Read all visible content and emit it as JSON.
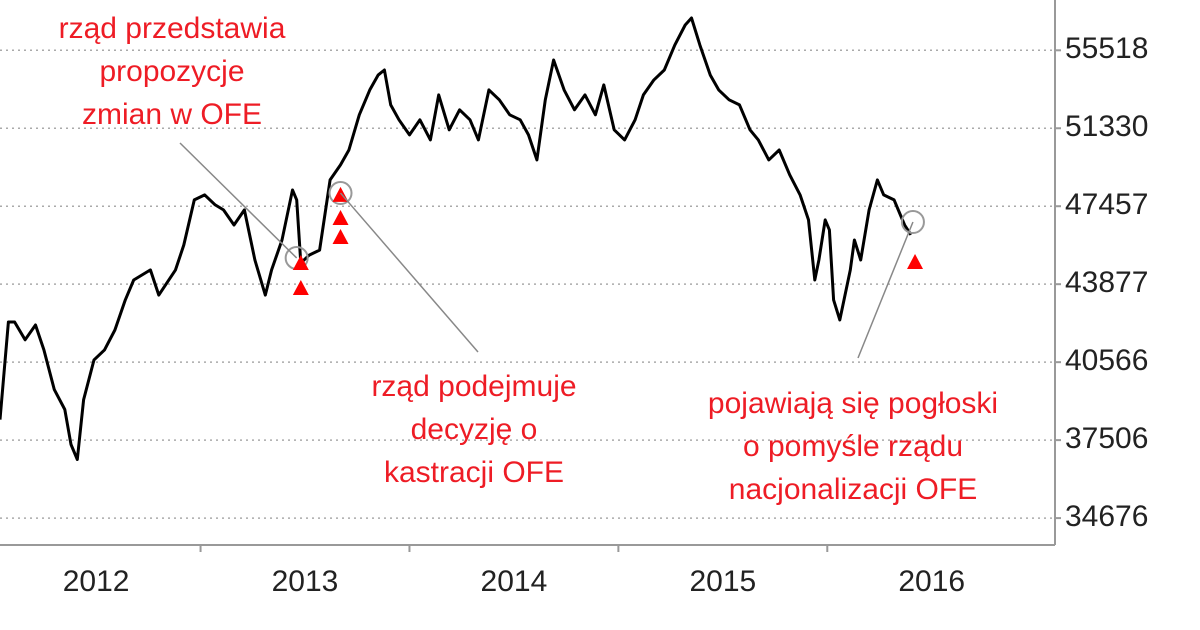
{
  "chart_data": {
    "type": "line",
    "x": [
      2012.04,
      2012.08,
      2012.11,
      2012.16,
      2012.21,
      2012.25,
      2012.3,
      2012.35,
      2012.38,
      2012.41,
      2012.44,
      2012.49,
      2012.54,
      2012.59,
      2012.64,
      2012.68,
      2012.76,
      2012.8,
      2012.88,
      2012.92,
      2012.97,
      2013.02,
      2013.07,
      2013.11,
      2013.16,
      2013.21,
      2013.26,
      2013.31,
      2013.34,
      2013.39,
      2013.44,
      2013.46,
      2013.48,
      2013.52,
      2013.57,
      2013.62,
      2013.67,
      2013.71,
      2013.76,
      2013.81,
      2013.85,
      2013.88,
      2013.91,
      2013.95,
      2014.0,
      2014.05,
      2014.1,
      2014.14,
      2014.19,
      2014.24,
      2014.29,
      2014.33,
      2014.38,
      2014.43,
      2014.48,
      2014.53,
      2014.57,
      2014.61,
      2014.65,
      2014.69,
      2014.74,
      2014.79,
      2014.84,
      2014.89,
      2014.93,
      2014.98,
      2015.03,
      2015.08,
      2015.12,
      2015.17,
      2015.22,
      2015.27,
      2015.32,
      2015.35,
      2015.39,
      2015.44,
      2015.48,
      2015.53,
      2015.58,
      2015.63,
      2015.67,
      2015.72,
      2015.77,
      2015.82,
      2015.87,
      2015.91,
      2015.94,
      2015.96,
      2015.99,
      2016.01,
      2016.03,
      2016.06,
      2016.08,
      2016.11,
      2016.13,
      2016.16,
      2016.2,
      2016.24,
      2016.27,
      2016.32,
      2016.37,
      2016.4
    ],
    "values": [
      38290,
      42240,
      42240,
      41490,
      42110,
      41070,
      39460,
      38680,
      37340,
      36780,
      39060,
      40660,
      41070,
      41900,
      43190,
      44060,
      44510,
      43400,
      44510,
      45640,
      47760,
      48000,
      47520,
      47280,
      46570,
      47280,
      44960,
      43400,
      44510,
      45870,
      48240,
      47760,
      44820,
      45180,
      45410,
      48730,
      49470,
      50220,
      52030,
      53350,
      54150,
      54430,
      52550,
      51770,
      50990,
      51770,
      50730,
      53080,
      51250,
      52290,
      51770,
      50730,
      53350,
      52820,
      52030,
      51770,
      50990,
      49720,
      52820,
      54980,
      53350,
      52290,
      53080,
      52030,
      53620,
      51250,
      50730,
      51770,
      53080,
      53890,
      54430,
      55810,
      56950,
      57350,
      55810,
      54150,
      53350,
      52820,
      52550,
      51250,
      50730,
      49720,
      50220,
      48980,
      48000,
      46810,
      44060,
      44960,
      46810,
      46340,
      43190,
      42330,
      43190,
      44510,
      45870,
      44960,
      47280,
      48730,
      48000,
      47760,
      46570,
      46110
    ],
    "color": "#000000",
    "ylim": [
      33750,
      58400
    ],
    "log_scale": true,
    "grid": true,
    "yticks": [
      34676,
      37506,
      40566,
      43877,
      47457,
      51330,
      55518
    ],
    "xlim": [
      2012.04,
      2017.09
    ],
    "xticks": [
      {
        "value": 2012.5,
        "label": "2012"
      },
      {
        "value": 2013.5,
        "label": "2013"
      },
      {
        "value": 2014.5,
        "label": "2014"
      },
      {
        "value": 2015.5,
        "label": "2015"
      },
      {
        "value": 2016.5,
        "label": "2016"
      }
    ],
    "signals": {
      "color": "#ff0000",
      "x": [
        2013.48,
        2013.48,
        2013.67,
        2013.67,
        2013.67,
        2016.42
      ],
      "values": [
        44820,
        43710,
        48000,
        46900,
        46010,
        44870
      ]
    },
    "highlights": {
      "color": "#999999",
      "x": [
        2013.46,
        2013.67,
        2016.41
      ],
      "values": [
        45050,
        48090,
        46710
      ]
    },
    "annotations": [
      {
        "lines": [
          "rząd przedstawia",
          "propozycje",
          "zmian w OFE"
        ]
      },
      {
        "lines": [
          "rząd podejmuje",
          "decyzję o",
          "kastracji OFE"
        ]
      },
      {
        "lines": [
          "pojawiają się pogłoski",
          "o pomyśle rządu",
          "nacjonalizacji OFE"
        ]
      }
    ]
  }
}
